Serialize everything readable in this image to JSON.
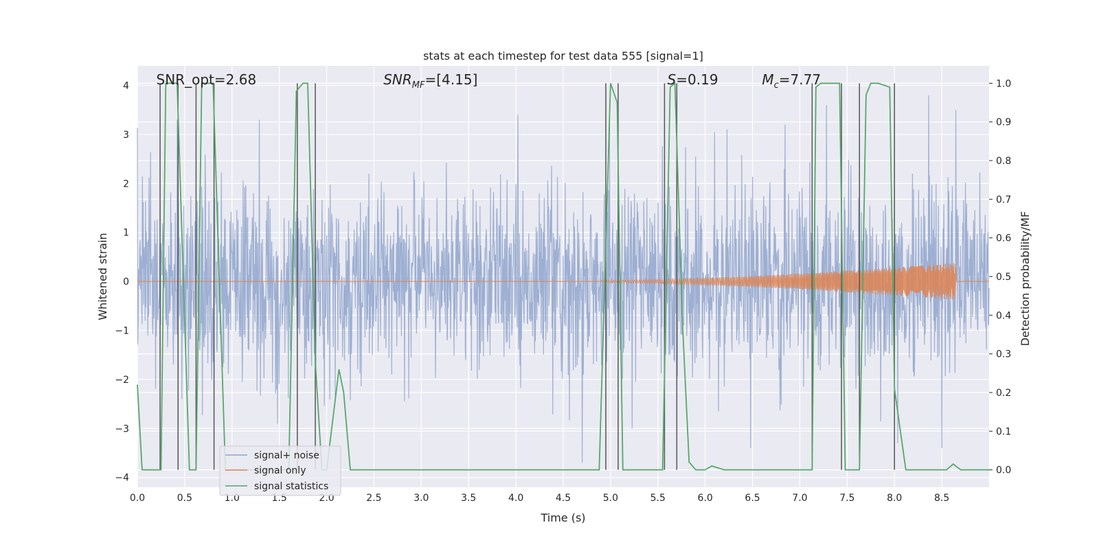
{
  "chart_data": {
    "type": "line",
    "title": "stats at each timestep for test data 555 [signal=1]",
    "xlabel": "Time (s)",
    "ylabel": "Whitened strain",
    "y2label": "Detection probability/MF",
    "xlim": [
      0,
      9.0
    ],
    "ylim": [
      -4.2,
      4.4
    ],
    "y2lim": [
      -0.045,
      1.045
    ],
    "xticks": [
      "0.0",
      "0.5",
      "1.0",
      "1.5",
      "2.0",
      "2.5",
      "3.0",
      "3.5",
      "4.0",
      "4.5",
      "5.0",
      "5.5",
      "6.0",
      "6.5",
      "7.0",
      "7.5",
      "8.0",
      "8.5"
    ],
    "yticks": [
      "4",
      "3",
      "2",
      "1",
      "0",
      "−1",
      "−2",
      "−3",
      "−4"
    ],
    "y2ticks": [
      "1.0",
      "0.9",
      "0.8",
      "0.7",
      "0.6",
      "0.5",
      "0.4",
      "0.3",
      "0.2",
      "0.1",
      "0.0"
    ],
    "grid": true,
    "legend_position": "lower-left",
    "annotations": [
      {
        "text": "SNR_opt=2.68",
        "x": 0.2
      },
      {
        "text": "SNR",
        "sub": "MF",
        "suffix": "=[4.15]",
        "italic": true,
        "x": 2.6
      },
      {
        "text": "S",
        "suffix": "=0.19",
        "italic": true,
        "x": 5.6
      },
      {
        "text": "M",
        "sub": "c",
        "suffix": "=7.77",
        "italic": true,
        "x": 6.6
      }
    ],
    "series": [
      {
        "name": "signal+ noise",
        "color": "#8fa4cc",
        "axis": "left",
        "noise_std": 0.95,
        "peak_times": [
          0.42,
          0.47,
          1.29,
          1.48,
          4.02,
          4.7,
          4.99,
          5.23,
          6.23,
          6.48,
          7.28,
          8.36,
          8.5,
          8.65
        ],
        "peak_values": [
          3.3,
          -2.4,
          3.3,
          -2.9,
          3.4,
          -3.7,
          3.4,
          -3.0,
          3.1,
          -3.4,
          3.6,
          3.8,
          -3.4,
          3.5
        ]
      },
      {
        "name": "signal only",
        "color": "#dd8452",
        "axis": "left",
        "chirp_start": 4.9,
        "chirp_end": 8.65,
        "amp_start": 0.02,
        "amp_end": 0.38
      },
      {
        "name": "signal statistics",
        "color": "#55a868",
        "axis": "right",
        "x": [
          0.0,
          0.05,
          0.25,
          0.3,
          0.42,
          0.5,
          0.55,
          0.62,
          0.68,
          0.8,
          0.88,
          0.93,
          1.0,
          1.6,
          1.68,
          1.75,
          1.8,
          1.88,
          1.95,
          2.0,
          2.13,
          2.18,
          2.25,
          2.32,
          2.4,
          4.88,
          5.0,
          5.07,
          5.13,
          5.55,
          5.63,
          5.68,
          5.76,
          5.83,
          5.9,
          6.0,
          6.07,
          6.2,
          7.13,
          7.17,
          7.22,
          7.42,
          7.48,
          7.63,
          7.7,
          7.75,
          7.83,
          7.95,
          8.0,
          8.12,
          8.18,
          8.55,
          8.62,
          8.7,
          8.82,
          9.0
        ],
        "y": [
          0.22,
          0.0,
          0.0,
          1.0,
          1.0,
          0.38,
          0.0,
          0.0,
          1.0,
          1.0,
          0.38,
          0.0,
          0.0,
          0.0,
          0.98,
          1.0,
          1.0,
          0.28,
          0.0,
          0.0,
          0.26,
          0.2,
          0.0,
          0.0,
          0.0,
          0.0,
          1.0,
          0.95,
          0.0,
          0.0,
          0.99,
          1.0,
          0.38,
          0.02,
          0.0,
          0.0,
          0.01,
          0.0,
          0.0,
          0.99,
          1.0,
          1.0,
          0.0,
          0.0,
          0.97,
          1.0,
          1.0,
          0.99,
          0.21,
          0.0,
          0.0,
          0.0,
          0.015,
          0.0,
          0.0,
          0.0
        ]
      }
    ],
    "vertical_lines": [
      0.24,
      0.43,
      0.62,
      0.81,
      1.69,
      1.88,
      4.95,
      5.08,
      5.57,
      5.7,
      7.13,
      7.44,
      7.63,
      8.0
    ]
  }
}
